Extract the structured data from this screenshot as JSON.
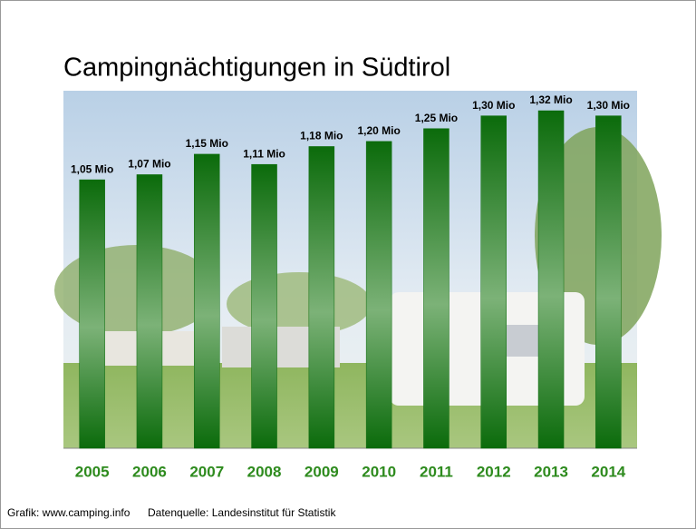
{
  "chart_data": {
    "type": "bar",
    "title": "Campingnächtigungen in Südtirol",
    "categories": [
      "2005",
      "2006",
      "2007",
      "2008",
      "2009",
      "2010",
      "2011",
      "2012",
      "2013",
      "2014"
    ],
    "values": [
      1.05,
      1.07,
      1.15,
      1.11,
      1.18,
      1.2,
      1.25,
      1.3,
      1.32,
      1.3
    ],
    "value_labels": [
      "1,05 Mio",
      "1,07 Mio",
      "1,15 Mio",
      "1,11 Mio",
      "1,18 Mio",
      "1,20 Mio",
      "1,25 Mio",
      "1,30 Mio",
      "1,32 Mio",
      "1,30 Mio"
    ],
    "color": "#0b6b0b",
    "footer": [
      "Grafik: www.camping.info",
      "Datenquelle: Landesinstitut für Statistik"
    ]
  }
}
